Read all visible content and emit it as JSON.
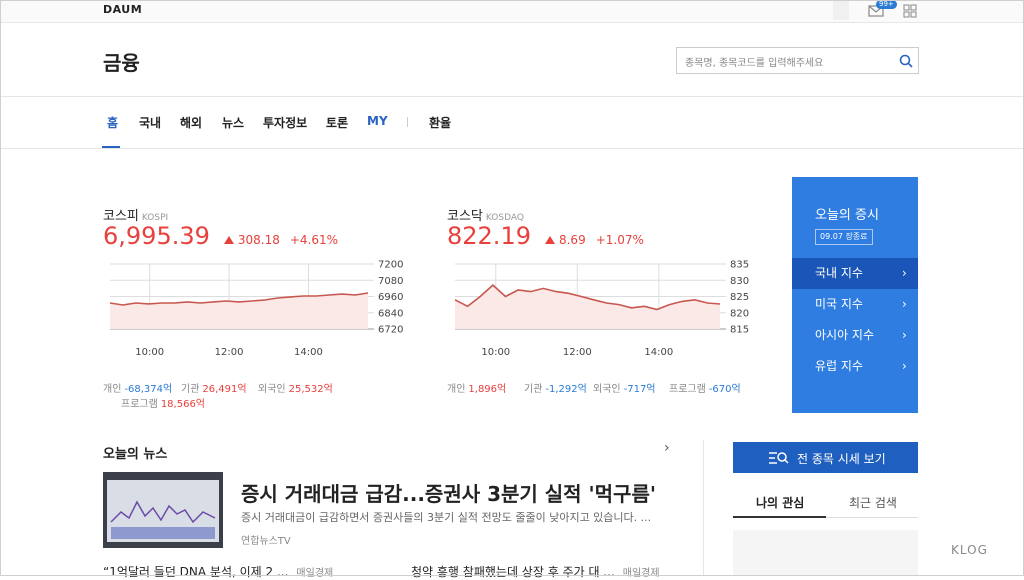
{
  "header": {
    "logo": "DAUM",
    "badge": "99+",
    "title": "금융",
    "search_placeholder": "종목명, 종목코드를 입력해주세요"
  },
  "nav": [
    "홈",
    "국내",
    "해외",
    "뉴스",
    "투자정보",
    "토론",
    "MY",
    "환율"
  ],
  "kospi": {
    "name": "코스피",
    "code": "KOSPI",
    "value": "6,995.39",
    "change": "308.18",
    "percent": "+4.61%",
    "chart": {
      "type": "line",
      "xticks": [
        "10:00",
        "12:00",
        "14:00"
      ],
      "ylim": [
        6720,
        7200
      ],
      "yticks": [
        7200,
        7080,
        6960,
        6840,
        6720
      ],
      "color": "#c8574f",
      "values": [
        6912,
        6897,
        6912,
        6905,
        6912,
        6912,
        6920,
        6912,
        6920,
        6927,
        6920,
        6927,
        6934,
        6949,
        6957,
        6964,
        6964,
        6971,
        6978,
        6971,
        6986
      ]
    },
    "investors": [
      {
        "name": "개인",
        "value": "-68,374억"
      },
      {
        "name": "기관",
        "value": "26,491억"
      },
      {
        "name": "외국인",
        "value": "25,532억"
      },
      {
        "name": "프로그램",
        "value": "18,566억"
      }
    ]
  },
  "kosdaq": {
    "name": "코스닥",
    "code": "KOSDAQ",
    "value": "822.19",
    "change": "8.69",
    "percent": "+1.07%",
    "chart": {
      "type": "line",
      "xticks": [
        "10:00",
        "12:00",
        "14:00"
      ],
      "ylim": [
        815,
        835
      ],
      "yticks": [
        835,
        830,
        825,
        820,
        815
      ],
      "color": "#c8574f",
      "values": [
        824,
        822,
        825,
        828.5,
        825,
        827,
        826.5,
        827.5,
        826.5,
        826,
        825,
        824,
        823,
        822.5,
        821.5,
        822,
        821,
        822.5,
        823.5,
        824,
        823,
        822.7
      ]
    },
    "investors": [
      {
        "name": "개인",
        "value": "1,896억"
      },
      {
        "name": "기관",
        "value": "-1,292억"
      },
      {
        "name": "외국인",
        "value": "-717억"
      },
      {
        "name": "프로그램",
        "value": "-670억"
      }
    ]
  },
  "market_box": {
    "title": "오늘의 증시",
    "status": "09.07 장종료",
    "menu": [
      "국내 지수",
      "미국 지수",
      "아시아 지수",
      "유럽 지수"
    ]
  },
  "news": {
    "title": "오늘의 뉴스",
    "headline": "증시 거래대금 급감...증권사 3분기 실적 '먹구름'",
    "summary": "증시 거래대금이 급감하면서 증권사들의 3분기 실적 전망도 줄줄이 낮아지고 있습니다. ...",
    "source": "연합뉴스TV",
    "items": [
      {
        "title": "“1억달러 들던 DNA 분석, 이제 2 ...",
        "source": "매일경제"
      },
      {
        "title": "청약 흥행 참패했는데 상장 후 주가 대 ...",
        "source": "매일경제"
      }
    ]
  },
  "sidebar": {
    "button": "전 종목 시세 보기",
    "tabs": [
      "나의 관심",
      "최근 검색"
    ]
  },
  "watermark": "KLOG"
}
